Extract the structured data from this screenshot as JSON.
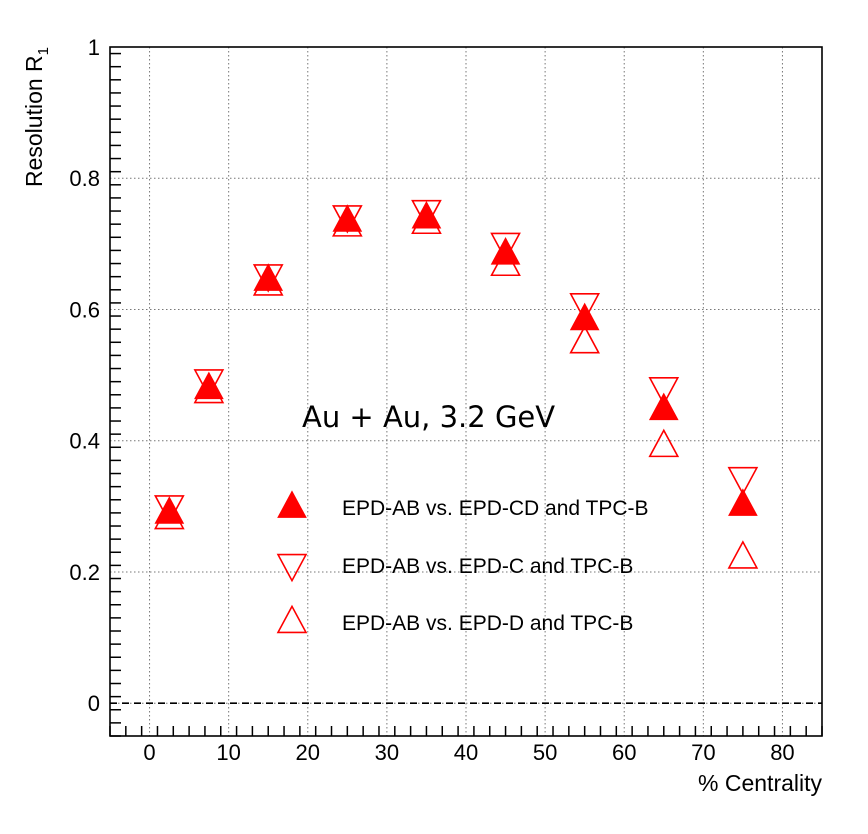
{
  "chart_data": {
    "type": "scatter",
    "xlabel": "% Centrality",
    "ylabel": "Resolution R",
    "ylabel_sub": "1",
    "xlim": [
      -5,
      85
    ],
    "ylim": [
      -0.05,
      1.0
    ],
    "xticks": [
      0,
      10,
      20,
      30,
      40,
      50,
      60,
      70,
      80
    ],
    "xtick_labels": [
      "0",
      "10",
      "20",
      "30",
      "40",
      "50",
      "60",
      "70",
      "80"
    ],
    "yticks": [
      0,
      0.2,
      0.4,
      0.6,
      0.8,
      1.0
    ],
    "ytick_labels": [
      "0",
      "0.2",
      "0.4",
      "0.6",
      "0.8",
      "1"
    ],
    "grid": true,
    "zero_line": true,
    "legend_position": "center-right",
    "annotation": "Au + Au, 3.2 GeV",
    "series": [
      {
        "name": "EPD-AB vs. EPD-CD and TPC-B",
        "marker": "filled-triangle-up",
        "color": "#ff0000",
        "x": [
          2.5,
          7.5,
          15,
          25,
          35,
          45,
          55,
          65,
          75
        ],
        "y": [
          0.29,
          0.48,
          0.645,
          0.735,
          0.74,
          0.685,
          0.585,
          0.448,
          0.302
        ]
      },
      {
        "name": "EPD-AB vs. EPD-C and TPC-B",
        "marker": "open-triangle-down",
        "color": "#ff0000",
        "x": [
          2.5,
          7.5,
          15,
          25,
          35,
          45,
          55,
          65,
          75
        ],
        "y": [
          0.3,
          0.492,
          0.652,
          0.742,
          0.75,
          0.7,
          0.608,
          0.48,
          0.343
        ]
      },
      {
        "name": "EPD-AB vs. EPD-D and TPC-B",
        "marker": "open-triangle-up",
        "color": "#ff0000",
        "x": [
          2.5,
          7.5,
          15,
          25,
          35,
          45,
          55,
          65,
          75
        ],
        "y": [
          0.282,
          0.474,
          0.638,
          0.728,
          0.732,
          0.668,
          0.55,
          0.392,
          0.222
        ]
      }
    ]
  }
}
